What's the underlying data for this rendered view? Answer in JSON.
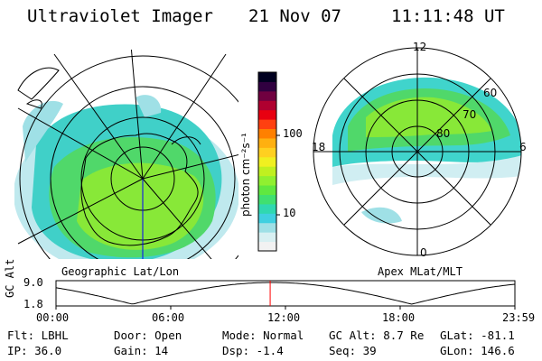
{
  "header": {
    "instrument": "Ultraviolet Imager",
    "date": "21 Nov 07",
    "time": "11:11:48 UT"
  },
  "left_panel": {
    "label": "Geographic Lat/Lon"
  },
  "right_panel": {
    "label": "Apex MLat/MLT",
    "mlt_labels": {
      "top": "12",
      "bottom": "0",
      "left": "18",
      "right": "6"
    },
    "lat_labels": [
      "60",
      "70",
      "80"
    ]
  },
  "colorbar": {
    "unit_label": "photon cm⁻²s⁻¹",
    "ticks": [
      {
        "label": "100",
        "value": 100
      },
      {
        "label": "10",
        "value": 10
      }
    ],
    "colors": [
      "#f2f2f2",
      "#d8f0f2",
      "#9fe0e6",
      "#40d0e0",
      "#30d8b0",
      "#40e070",
      "#60e840",
      "#90f030",
      "#c0f020",
      "#f0f020",
      "#ffd020",
      "#ffb010",
      "#ff8000",
      "#ff4010",
      "#e80010",
      "#b00030",
      "#700040",
      "#300040",
      "#000020"
    ]
  },
  "timeline": {
    "axis_label": "GC Alt",
    "ymax_label": "9.0",
    "ymin_label": "1.8",
    "ymax": 9.0,
    "ymin": 1.8,
    "ticks": [
      "00:00",
      "06:00",
      "12:00",
      "18:00",
      "23:59"
    ],
    "current_hour": 11.2,
    "marker_color": "#ff0000"
  },
  "info": {
    "flt": "Flt: LBHL",
    "ip": "IP: 36.0",
    "door": "Door: Open",
    "gain": "Gain: 14",
    "mode": "Mode: Normal",
    "dsp": "Dsp:    -1.4",
    "gcalt": "GC Alt: 8.7 Re",
    "seq": "Seq: 39",
    "glat": "GLat: -81.1",
    "glon": "GLon: 146.6"
  }
}
